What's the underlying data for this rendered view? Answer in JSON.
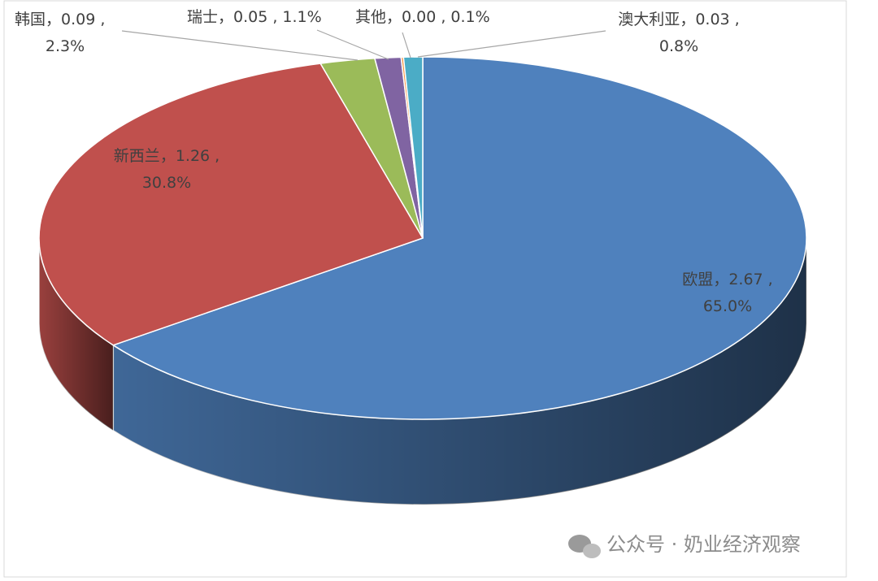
{
  "chart_data": {
    "type": "pie3d",
    "categories": [
      "欧盟",
      "新西兰",
      "韩国",
      "瑞士",
      "其他",
      "澳大利亚"
    ],
    "values": [
      2.67,
      1.26,
      0.09,
      0.05,
      0,
      0.03
    ],
    "value_labels": [
      "，2.67 ,",
      "，1.26 ,",
      "，0.09 ,",
      "，0.05 ,",
      "，0.00 ,",
      "，0.03 ,"
    ],
    "percents": [
      65.0,
      30.8,
      2.3,
      1.1,
      0.1,
      0.8
    ],
    "percent_labels": [
      "65.0%",
      "30.8%",
      "2.3%",
      "1.1%",
      "0.1%",
      "0.8%"
    ],
    "colors": [
      "#4f81bd",
      "#c0504d",
      "#9bbb59",
      "#8064a2",
      "#f79646",
      "#4bacc6"
    ]
  },
  "watermark": "公众号 · 奶业经济观察"
}
